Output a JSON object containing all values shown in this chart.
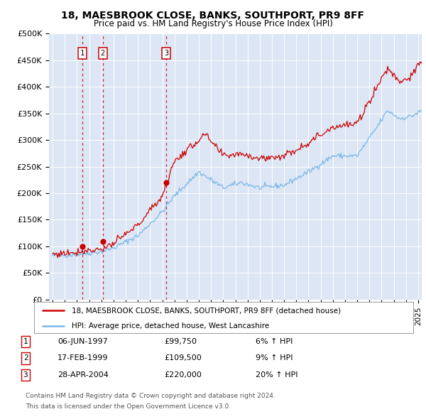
{
  "title1": "18, MAESBROOK CLOSE, BANKS, SOUTHPORT, PR9 8FF",
  "title2": "Price paid vs. HM Land Registry's House Price Index (HPI)",
  "legend_line1": "18, MAESBROOK CLOSE, BANKS, SOUTHPORT, PR9 8FF (detached house)",
  "legend_line2": "HPI: Average price, detached house, West Lancashire",
  "footnote1": "Contains HM Land Registry data © Crown copyright and database right 2024.",
  "footnote2": "This data is licensed under the Open Government Licence v3.0.",
  "transactions": [
    {
      "num": 1,
      "date": "06-JUN-1997",
      "price": 99750,
      "pct": "6%",
      "dir": "↑"
    },
    {
      "num": 2,
      "date": "17-FEB-1999",
      "price": 109500,
      "pct": "9%",
      "dir": "↑"
    },
    {
      "num": 3,
      "date": "28-APR-2004",
      "price": 220000,
      "pct": "20%",
      "dir": "↑"
    }
  ],
  "sale_dates": [
    1997.44,
    1999.12,
    2004.32
  ],
  "sale_prices": [
    99750,
    109500,
    220000
  ],
  "hpi_color": "#7ab8e8",
  "price_color": "#cc0000",
  "bg_color": "#dce6f5",
  "ylim": [
    0,
    500000
  ],
  "xlim_start": 1994.7,
  "xlim_end": 2025.3,
  "hpi_waypoints_x": [
    1994.7,
    1995.5,
    1997.0,
    1999.0,
    2000.0,
    2002.0,
    2004.0,
    2005.0,
    2007.0,
    2009.0,
    2010.5,
    2012.0,
    2014.0,
    2016.0,
    2018.0,
    2020.0,
    2021.5,
    2022.5,
    2023.5,
    2024.5,
    2025.3
  ],
  "hpi_waypoints_y": [
    82000,
    83000,
    85000,
    90000,
    97000,
    120000,
    165000,
    195000,
    240000,
    210000,
    220000,
    210000,
    215000,
    240000,
    270000,
    270000,
    320000,
    355000,
    340000,
    345000,
    355000
  ],
  "price_waypoints_x": [
    1994.7,
    1995.5,
    1997.0,
    1999.0,
    2000.0,
    2002.0,
    2004.0,
    2005.0,
    2007.5,
    2009.0,
    2010.5,
    2012.0,
    2014.0,
    2016.0,
    2018.0,
    2020.0,
    2021.5,
    2022.5,
    2023.5,
    2024.5,
    2025.3
  ],
  "price_waypoints_y": [
    85000,
    86000,
    90000,
    95000,
    105000,
    140000,
    195000,
    260000,
    310000,
    270000,
    275000,
    265000,
    270000,
    295000,
    325000,
    330000,
    395000,
    435000,
    410000,
    420000,
    450000
  ]
}
